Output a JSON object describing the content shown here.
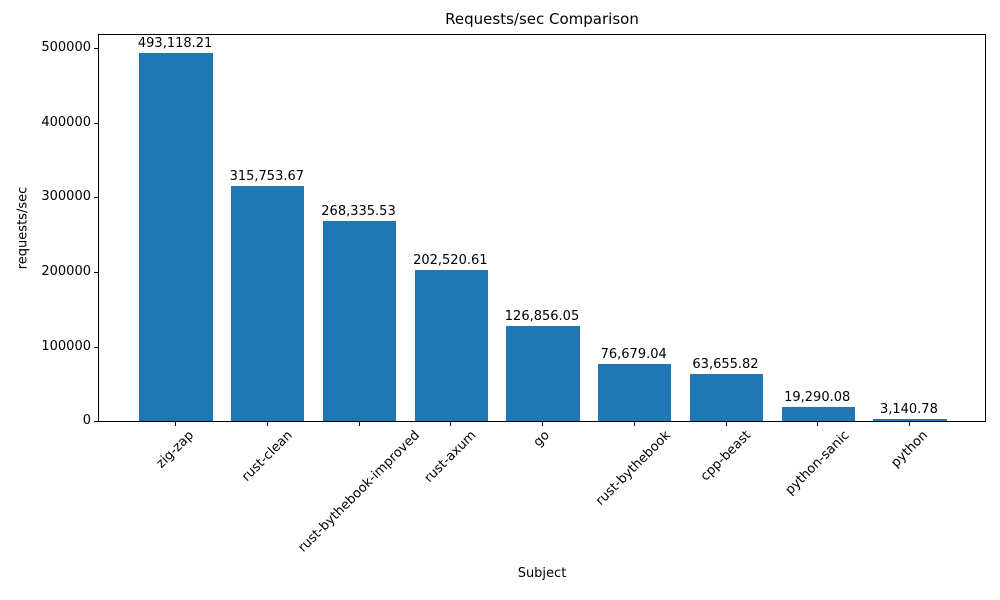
{
  "chart_data": {
    "type": "bar",
    "title": "Requests/sec Comparison",
    "xlabel": "Subject",
    "ylabel": "requests/sec",
    "categories": [
      "zig-zap",
      "rust-clean",
      "rust-bythebook-improved",
      "rust-axum",
      "go",
      "rust-bythebook",
      "cpp-beast",
      "python-sanic",
      "python"
    ],
    "values": [
      493118.21,
      315753.67,
      268335.53,
      202520.61,
      126856.05,
      76679.04,
      63655.82,
      19290.08,
      3140.78
    ],
    "value_labels": [
      "493,118.21",
      "315,753.67",
      "268,335.53",
      "202,520.61",
      "126,856.05",
      "76,679.04",
      "63,655.82",
      "19,290.08",
      "3,140.78"
    ],
    "yticks": [
      0,
      100000,
      200000,
      300000,
      400000,
      500000
    ],
    "ylim": [
      0,
      517774
    ],
    "bar_color": "#1f77b4",
    "axis_color": "#000000",
    "grid": false,
    "legend_position": "none"
  }
}
